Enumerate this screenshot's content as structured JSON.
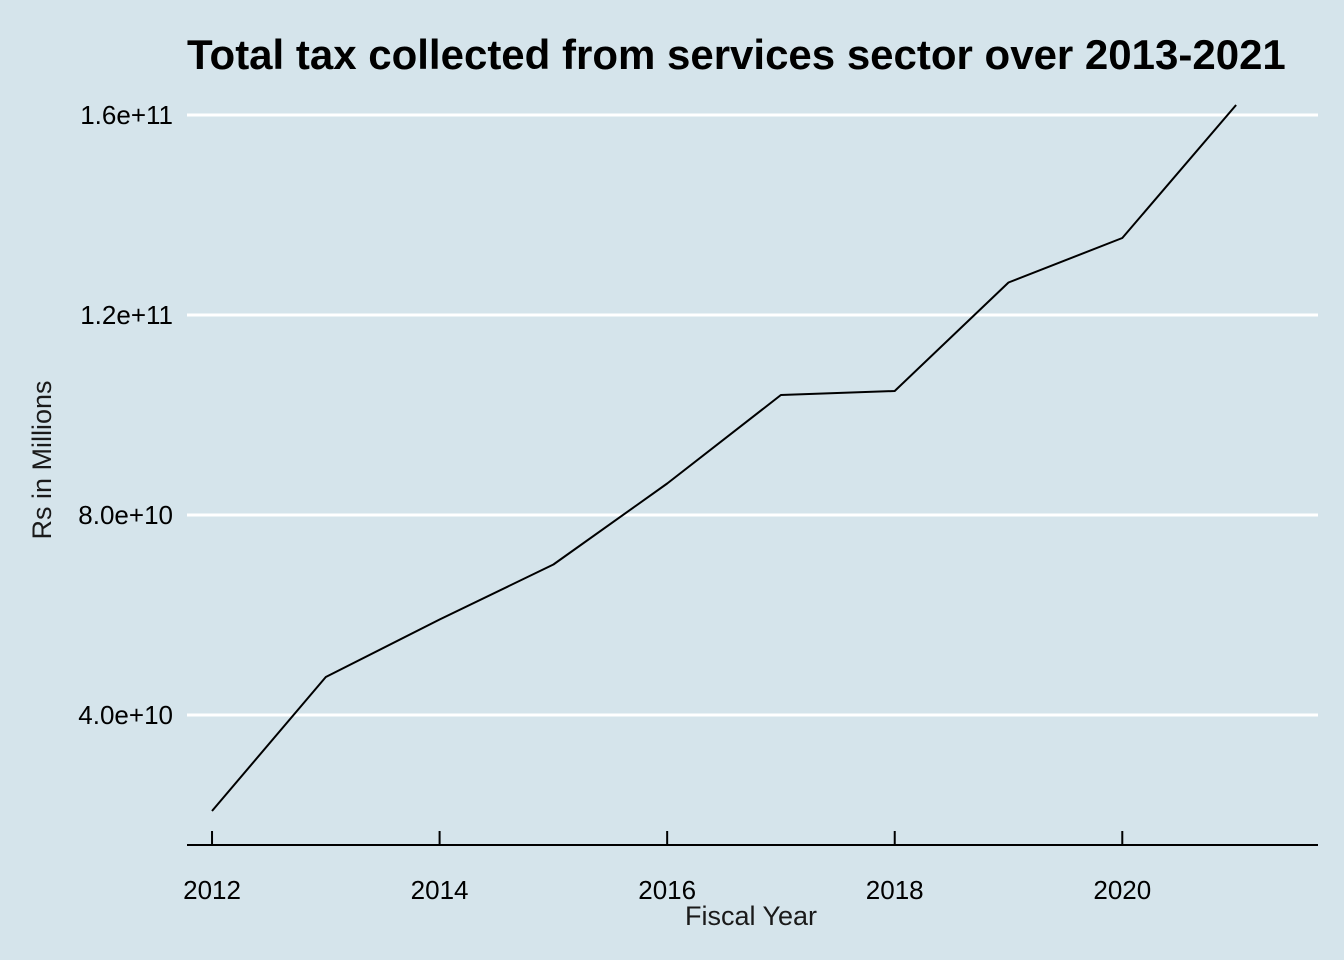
{
  "colors": {
    "background": "#d5e4eb",
    "gridline": "#ffffff",
    "line": "#000000",
    "axis": "#000000"
  },
  "chart_data": {
    "type": "line",
    "title": "Total tax collected from services sector over 2013-2021",
    "xlabel": "Fiscal Year",
    "ylabel": "Rs in Millions",
    "x": [
      2012,
      2013,
      2014,
      2015,
      2016,
      2017,
      2018,
      2019,
      2020,
      2021
    ],
    "values": [
      20800000000,
      47600000000,
      59100000000,
      70100000000,
      86300000000,
      104000000000,
      104800000000,
      126500000000,
      135400000000,
      162000000000
    ],
    "xlim": [
      2011.78,
      2021.72
    ],
    "ylim": [
      14000000000,
      163800000000
    ],
    "xticks": [
      2012,
      2014,
      2016,
      2018,
      2020
    ],
    "xtick_labels": [
      "2012",
      "2014",
      "2016",
      "2018",
      "2020"
    ],
    "yticks": [
      40000000000,
      80000000000,
      120000000000,
      160000000000
    ],
    "ytick_labels": [
      "4.0e+10",
      "8.0e+10",
      "1.2e+11",
      "1.6e+11"
    ],
    "grid": "horizontal-major",
    "legend": "none"
  }
}
